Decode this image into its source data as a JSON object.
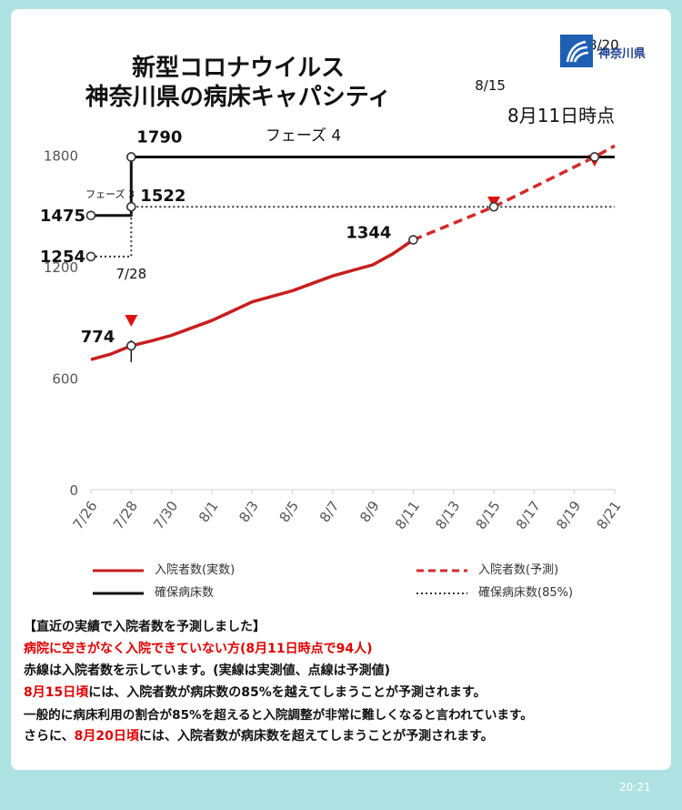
{
  "header": {
    "title_line1": "新型コロナウイルス",
    "title_line2": "神奈川県の病床キャパシティ",
    "as_of": "8月11日時点",
    "logo_text": "神奈川県"
  },
  "legend": {
    "actual": "入院者数(実数)",
    "forecast": "入院者数(予測)",
    "beds": "確保病床数",
    "beds85": "確保病床数(85%)"
  },
  "notes": {
    "heading": "【直近の実績で入院者数を予測しました】",
    "line1": "病院に空きがなく入院できていない方(8月11日時点で94人)",
    "line2": "赤線は入院者数を示しています。(実線は実測値、点線は予測値)",
    "line3_red": "8月15日頃",
    "line3_rest": "には、入院者数が病床数の85%を越えてしまうことが予測されます。",
    "line4": "一般的に病床利用の割合が85%を超えると入院調整が非常に難しくなると言われています。",
    "line5_pre": "さらに、",
    "line5_red": "8月20日頃",
    "line5_rest": "には、入院者数が病床数を超えてしまうことが予測されます。"
  },
  "timestamp": "20:21",
  "colors": {
    "actual": "#c81e1e",
    "forecast": "#d42a2a",
    "beds": "#111111",
    "marker": "#e01010",
    "axis_text": "#555555"
  },
  "chart_data": {
    "type": "line",
    "x_tick_labels": [
      "7/26",
      "7/28",
      "7/30",
      "8/1",
      "8/3",
      "8/5",
      "8/7",
      "8/9",
      "8/11",
      "8/13",
      "8/15",
      "8/17",
      "8/19",
      "8/21"
    ],
    "y_ticks": [
      0,
      600,
      1200,
      1800
    ],
    "ylim": [
      0,
      1900
    ],
    "series": [
      {
        "name": "入院者数(実数)",
        "style": "solid",
        "points": [
          [
            "7/26",
            700
          ],
          [
            "7/27",
            730
          ],
          [
            "7/28",
            774
          ],
          [
            "7/29",
            800
          ],
          [
            "7/30",
            830
          ],
          [
            "7/31",
            870
          ],
          [
            "8/1",
            910
          ],
          [
            "8/2",
            960
          ],
          [
            "8/3",
            1010
          ],
          [
            "8/4",
            1040
          ],
          [
            "8/5",
            1070
          ],
          [
            "8/6",
            1110
          ],
          [
            "8/7",
            1150
          ],
          [
            "8/8",
            1180
          ],
          [
            "8/9",
            1210
          ],
          [
            "8/10",
            1270
          ],
          [
            "8/11",
            1344
          ]
        ]
      },
      {
        "name": "入院者数(予測)",
        "style": "dashed",
        "points": [
          [
            "8/11",
            1344
          ],
          [
            "8/15",
            1522
          ],
          [
            "8/20",
            1790
          ],
          [
            "8/21",
            1850
          ]
        ]
      },
      {
        "name": "確保病床数",
        "style": "solid",
        "points": [
          [
            "7/26",
            1475
          ],
          [
            "7/28",
            1475
          ],
          [
            "7/28",
            1790
          ],
          [
            "8/21",
            1790
          ]
        ]
      },
      {
        "name": "確保病床数(85%)",
        "style": "dotted",
        "points": [
          [
            "7/26",
            1254
          ],
          [
            "7/28",
            1254
          ],
          [
            "7/28",
            1522
          ],
          [
            "8/21",
            1522
          ]
        ]
      }
    ],
    "annotations": [
      {
        "text": "1790",
        "x": "7/28",
        "y": 1790
      },
      {
        "text": "1522",
        "x": "7/28",
        "y": 1522
      },
      {
        "text": "1475",
        "x": "7/26",
        "y": 1475
      },
      {
        "text": "1254",
        "x": "7/26",
        "y": 1254
      },
      {
        "text": "774",
        "x": "7/28",
        "y": 774
      },
      {
        "text": "1344",
        "x": "8/11",
        "y": 1344
      },
      {
        "text": "7/28",
        "x": "7/28",
        "y": 1254
      },
      {
        "text": "8/15",
        "x": "8/15",
        "y": 1522
      },
      {
        "text": "8/20",
        "x": "8/20",
        "y": 1790
      },
      {
        "text": "フェーズ 4",
        "x": "8/5",
        "y": 1790
      },
      {
        "text": "フェーズ 3",
        "x": "7/26",
        "y": 1475
      }
    ],
    "markers": [
      {
        "label": "7/28",
        "x": "7/28",
        "y": 774
      },
      {
        "label": "8/15",
        "x": "8/15",
        "y": 1522
      },
      {
        "label": "8/20",
        "x": "8/20",
        "y": 1790
      }
    ],
    "open_points": [
      [
        "7/26",
        1475
      ],
      [
        "7/26",
        1254
      ],
      [
        "7/28",
        1790
      ],
      [
        "7/28",
        1522
      ],
      [
        "7/28",
        774
      ],
      [
        "8/11",
        1344
      ],
      [
        "8/15",
        1522
      ],
      [
        "8/20",
        1790
      ]
    ],
    "grid": false,
    "legend_position": "bottom"
  }
}
